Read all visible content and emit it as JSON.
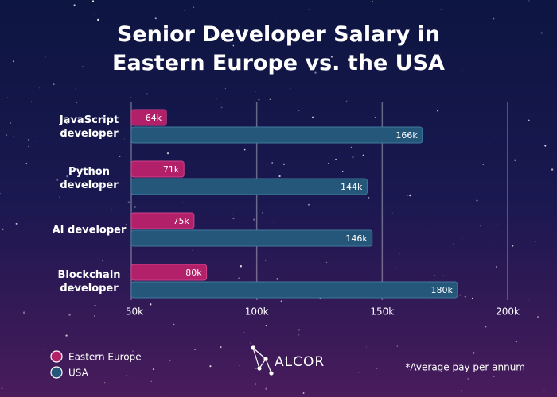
{
  "chart_data": {
    "type": "bar",
    "orientation": "horizontal",
    "title": "Senior Developer Salary in Eastern Europe vs. the USA",
    "categories": [
      "JavaScript developer",
      "Python developer",
      "AI developer",
      "Blockchain developer"
    ],
    "series": [
      {
        "name": "Eastern Europe",
        "color": "#b3206a",
        "values": [
          64,
          71,
          75,
          80
        ],
        "value_labels": [
          "64k",
          "71k",
          "75k",
          "80k"
        ]
      },
      {
        "name": "USA",
        "color": "#24577a",
        "values": [
          166,
          144,
          146,
          180
        ],
        "value_labels": [
          "166k",
          "144k",
          "146k",
          "180k"
        ]
      }
    ],
    "xlim": [
      50,
      200
    ],
    "xticks": [
      {
        "value": 50,
        "label": "50k"
      },
      {
        "value": 100,
        "label": "100k"
      },
      {
        "value": 150,
        "label": "150k"
      },
      {
        "value": 200,
        "label": "200k"
      }
    ],
    "grid": true,
    "legend": "bottom-left",
    "logo": "ALCOR",
    "footnote": "*Average pay per annum"
  }
}
